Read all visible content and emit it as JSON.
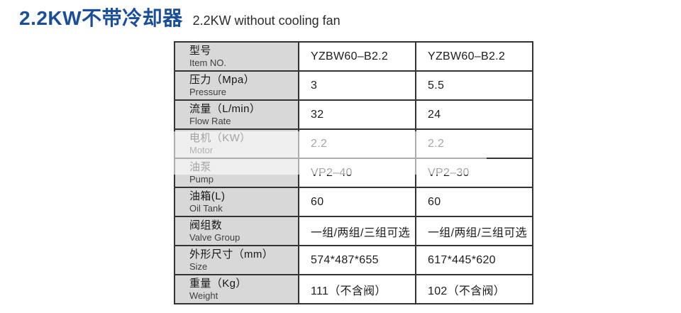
{
  "header": {
    "title_zh": "2.2KW不带冷却器",
    "title_en": "2.2KW without cooling fan"
  },
  "colors": {
    "title_blue": "#1a4e9b",
    "label_column_bg": "#d8d8d8",
    "table_border": "#333333",
    "washed_overlay": "rgba(255,255,255,0.60)"
  },
  "spec_table": {
    "rows": [
      {
        "label_zh": "型号",
        "label_en": "Item NO.",
        "value_a": "YZBW60–B2.2",
        "value_b": "YZBW60–B2.2"
      },
      {
        "label_zh": "压力（Mpa）",
        "label_en": "Pressure",
        "value_a": "3",
        "value_b": "5.5"
      },
      {
        "label_zh": "流量（L/min）",
        "label_en": "Flow Rate",
        "value_a": "32",
        "value_b": "24"
      },
      {
        "label_zh": "电机（KW）",
        "label_en": "Motor",
        "value_a": "2.2",
        "value_b": "2.2"
      },
      {
        "label_zh": "油泵",
        "label_en": "Pump",
        "value_a": "VP2–40",
        "value_b": "VP2–30"
      },
      {
        "label_zh": "油箱(L)",
        "label_en": "Oil Tank",
        "value_a": "60",
        "value_b": "60"
      },
      {
        "label_zh": "阀组数",
        "label_en": "Valve Group",
        "value_a": "一组/两组/三组可选",
        "value_b": "一组/两组/三组可选"
      },
      {
        "label_zh": "外形尺寸（mm）",
        "label_en": "Size",
        "value_a": "574*487*655",
        "value_b": "617*445*620"
      },
      {
        "label_zh": "重量（Kg）",
        "label_en": "Weight",
        "value_a": "111（不含阀）",
        "value_b": "102（不含阀）"
      }
    ]
  }
}
